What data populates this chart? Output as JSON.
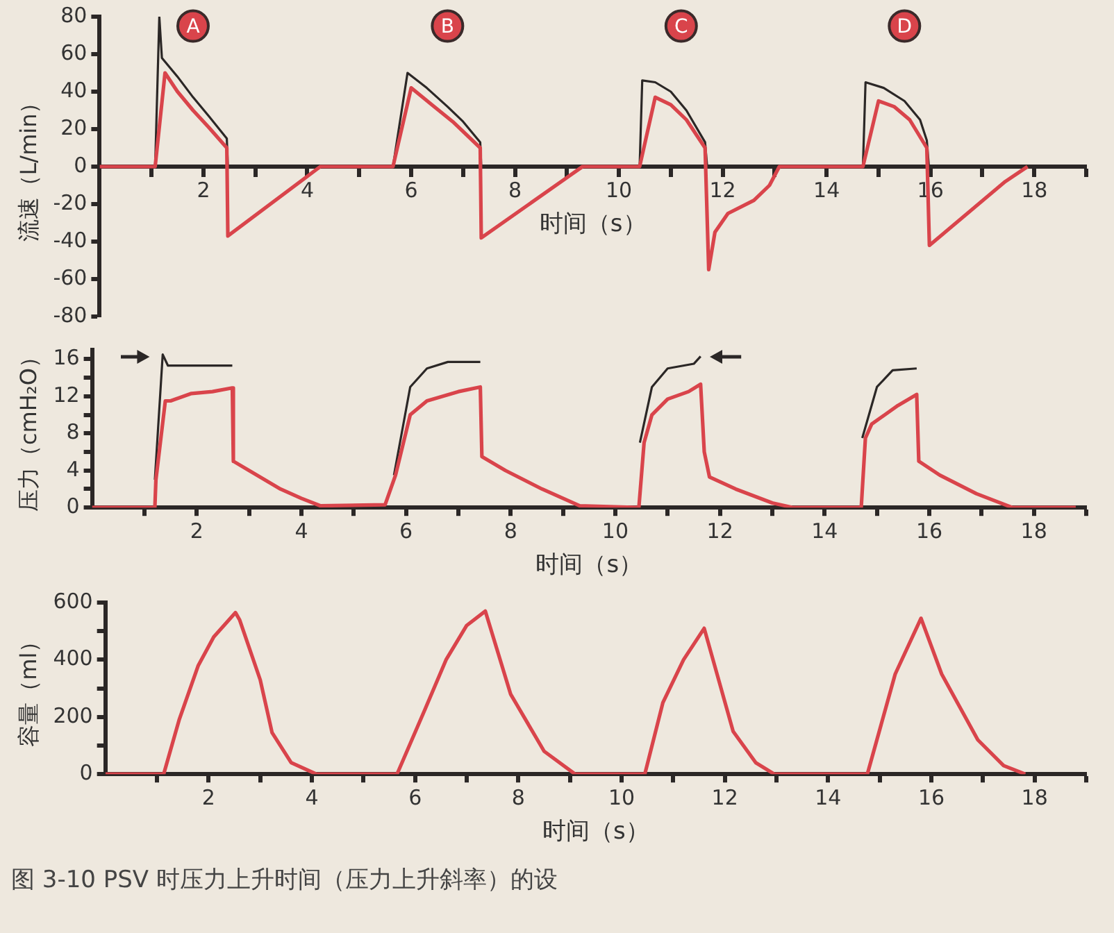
{
  "chart_data": [
    {
      "type": "line",
      "ylabel": "流速（L/min）",
      "xlabel": "时间（s）",
      "xlim": [
        0,
        19
      ],
      "ylim": [
        -80,
        80
      ],
      "xticks": [
        {
          "value": 1,
          "label": null
        },
        2,
        {
          "value": 3,
          "label": null
        },
        4,
        {
          "value": 5,
          "label": null
        },
        6,
        {
          "value": 7,
          "label": null
        },
        8,
        {
          "value": 9,
          "label": null
        },
        10,
        {
          "value": 11,
          "label": null
        },
        12,
        {
          "value": 13,
          "label": null
        },
        14,
        {
          "value": 15,
          "label": null
        },
        16,
        {
          "value": 17,
          "label": null
        },
        18,
        {
          "value": 19,
          "label": null
        }
      ],
      "yticks": [
        -80,
        -60,
        -40,
        -20,
        0,
        20,
        40,
        60,
        80
      ],
      "grid": false,
      "legend": false,
      "annotations": [
        {
          "text": "A",
          "x": 1.8,
          "y": 75
        },
        {
          "text": "B",
          "x": 6.7,
          "y": 75
        },
        {
          "text": "C",
          "x": 11.2,
          "y": 75
        },
        {
          "text": "D",
          "x": 15.5,
          "y": 75
        }
      ],
      "series": [
        {
          "color": "#2b2726",
          "x": [
            1.07,
            1.15,
            1.2,
            1.5,
            1.8,
            2.1,
            2.45,
            2.47,
            null,
            5.65,
            5.93,
            6.3,
            6.7,
            7.0,
            7.33,
            7.35,
            null,
            10.4,
            10.45,
            10.7,
            11.0,
            11.3,
            11.66,
            11.7,
            null,
            14.7,
            14.75,
            15.1,
            15.5,
            15.8,
            15.93,
            15.97
          ],
          "values": [
            0,
            80,
            58,
            48,
            37,
            27,
            15,
            0,
            null,
            0,
            50,
            42,
            32,
            24,
            13,
            0,
            null,
            0,
            46,
            45,
            40,
            30,
            13,
            0,
            null,
            0,
            45,
            42,
            35,
            25,
            14,
            0
          ]
        },
        {
          "color": "#d9444b",
          "x": [
            0,
            1.07,
            1.26,
            1.5,
            1.8,
            2.1,
            2.45,
            2.47,
            4.25,
            5.65,
            6.0,
            6.4,
            6.8,
            7.33,
            7.35,
            9.3,
            10.4,
            10.7,
            11.0,
            11.3,
            11.66,
            11.73,
            11.85,
            12.1,
            12.6,
            12.9,
            13.09,
            14.7,
            15.0,
            15.3,
            15.6,
            15.93,
            15.98,
            17.44,
            17.87
          ],
          "values": [
            0,
            0,
            50,
            40,
            30,
            21,
            10,
            -37,
            0,
            0,
            42,
            33,
            24,
            10,
            -38,
            0,
            0,
            37,
            33,
            25,
            10,
            -55,
            -35,
            -25,
            -18,
            -10,
            0,
            0,
            35,
            32,
            25,
            10,
            -42,
            -8,
            0
          ]
        }
      ]
    },
    {
      "type": "line",
      "ylabel": "压力（cmH₂O）",
      "xlabel": "时间（s）",
      "xlim": [
        0,
        19
      ],
      "ylim": [
        0,
        17
      ],
      "xticks": [
        {
          "value": 1,
          "label": null
        },
        2,
        {
          "value": 3,
          "label": null
        },
        4,
        {
          "value": 5,
          "label": null
        },
        6,
        {
          "value": 7,
          "label": null
        },
        8,
        {
          "value": 9,
          "label": null
        },
        10,
        {
          "value": 11,
          "label": null
        },
        12,
        {
          "value": 13,
          "label": null
        },
        14,
        {
          "value": 15,
          "label": null
        },
        16,
        {
          "value": 17,
          "label": null
        },
        18,
        {
          "value": 19,
          "label": null
        }
      ],
      "yticks": [
        0,
        {
          "value": 2,
          "label": null
        },
        4,
        {
          "value": 6,
          "label": null
        },
        8,
        {
          "value": 10,
          "label": null
        },
        12,
        {
          "value": 14,
          "label": null
        },
        16
      ],
      "grid": false,
      "legend": false,
      "series": [
        {
          "color": "#2b2726",
          "x": [
            1.2,
            1.35,
            1.45,
            2.0,
            2.68,
            null,
            5.77,
            6.08,
            6.4,
            6.8,
            7.42,
            null,
            10.47,
            10.7,
            11.0,
            11.5,
            11.63,
            null,
            14.72,
            15.0,
            15.3,
            15.76
          ],
          "values": [
            3,
            16.5,
            15.3,
            15.3,
            15.3,
            null,
            3.5,
            13,
            15,
            15.7,
            15.7,
            null,
            7,
            13,
            15,
            15.5,
            16.3,
            null,
            7.5,
            13,
            14.8,
            15
          ]
        },
        {
          "color": "#d9444b",
          "x": [
            0,
            1.2,
            1.22,
            1.4,
            1.5,
            1.9,
            2.3,
            2.68,
            2.7,
            3.0,
            3.6,
            4.0,
            4.36,
            5.6,
            5.8,
            6.08,
            6.4,
            7.0,
            7.42,
            7.45,
            7.9,
            8.6,
            9.32,
            10.45,
            10.55,
            10.7,
            11.0,
            11.4,
            11.63,
            11.7,
            11.8,
            12.3,
            13.0,
            13.4,
            14.7,
            14.78,
            14.9,
            15.4,
            15.76,
            15.8,
            16.2,
            16.9,
            17.59,
            18.8
          ],
          "values": [
            0,
            0,
            3,
            11.5,
            11.5,
            12.3,
            12.5,
            12.9,
            5,
            4,
            2,
            1,
            0.2,
            0.3,
            3.5,
            10,
            11.5,
            12.5,
            13,
            5.5,
            4,
            2,
            0.2,
            0,
            7,
            10,
            11.7,
            12.5,
            13.3,
            6,
            3.3,
            2,
            0.5,
            0,
            0,
            7.5,
            9,
            11,
            12.2,
            5,
            3.5,
            1.5,
            0,
            0
          ]
        }
      ]
    },
    {
      "type": "line",
      "ylabel": "容量（ml）",
      "xlabel": "时间（s）",
      "xlim": [
        0,
        19
      ],
      "ylim": [
        0,
        600
      ],
      "xticks": [
        {
          "value": 1,
          "label": null
        },
        2,
        {
          "value": 3,
          "label": null
        },
        4,
        {
          "value": 5,
          "label": null
        },
        6,
        {
          "value": 7,
          "label": null
        },
        8,
        {
          "value": 9,
          "label": null
        },
        10,
        {
          "value": 11,
          "label": null
        },
        12,
        {
          "value": 13,
          "label": null
        },
        14,
        {
          "value": 15,
          "label": null
        },
        16,
        {
          "value": 17,
          "label": null
        },
        18,
        {
          "value": 19,
          "label": null
        }
      ],
      "yticks": [
        0,
        {
          "value": 100,
          "label": null
        },
        200,
        {
          "value": 300,
          "label": null
        },
        400,
        {
          "value": 500,
          "label": null
        },
        600
      ],
      "grid": false,
      "legend": false,
      "annotations": [
        "图 3-10   PSV 时压力上升时间（压力上升斜率）的设"
      ],
      "series": [
        {
          "color": "#d9444b",
          "x": [
            0,
            1.13,
            1.43,
            1.8,
            2.1,
            2.52,
            2.6,
            3.0,
            3.23,
            3.6,
            4.09,
            5.65,
            6.2,
            6.6,
            7.0,
            7.36,
            7.85,
            8.5,
            9.1,
            10.45,
            10.8,
            11.2,
            11.6,
            12.16,
            12.6,
            12.96,
            14.76,
            15.3,
            15.8,
            16.2,
            16.9,
            17.4,
            17.82
          ],
          "values": [
            0,
            0,
            190,
            380,
            480,
            565,
            540,
            330,
            145,
            40,
            0,
            0,
            230,
            400,
            520,
            570,
            280,
            80,
            0,
            0,
            250,
            400,
            510,
            150,
            40,
            0,
            0,
            350,
            545,
            350,
            120,
            30,
            0
          ]
        }
      ]
    }
  ]
}
